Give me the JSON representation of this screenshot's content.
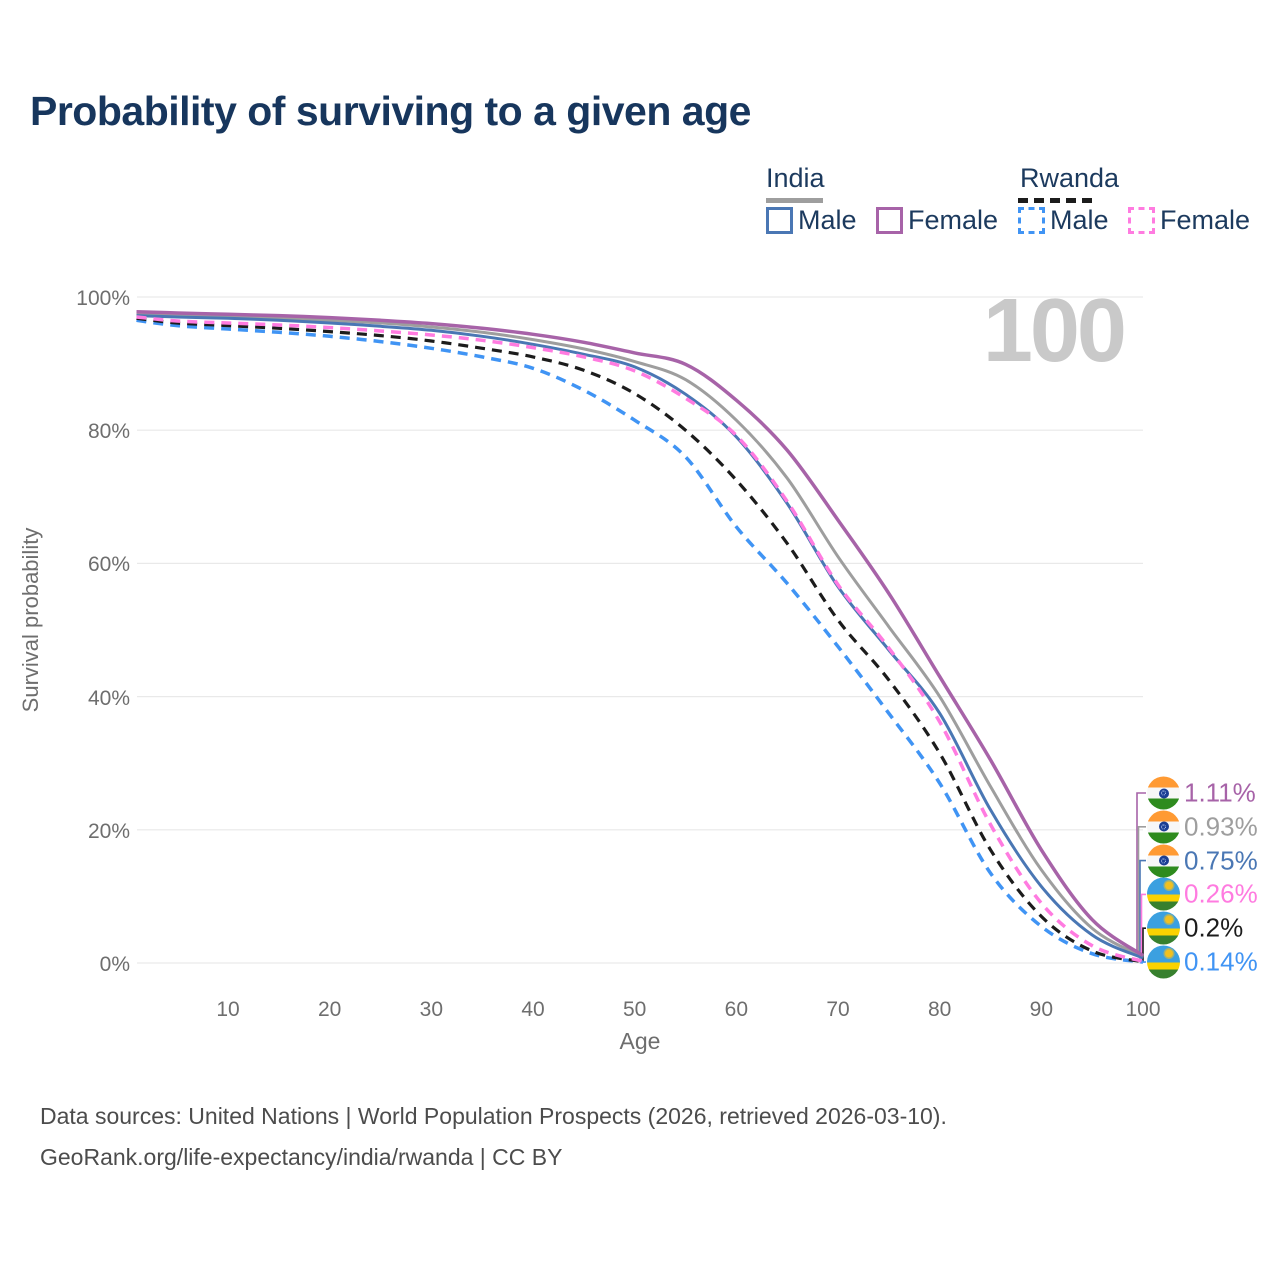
{
  "title": "Probability of surviving to a given age",
  "watermark_age": "100",
  "legend": {
    "groups": [
      {
        "title": "India",
        "line_style": "solid",
        "underline_color": "#9e9e9e",
        "items": [
          {
            "label": "Male",
            "color": "#4a77b4"
          },
          {
            "label": "Female",
            "color": "#a763a8"
          }
        ]
      },
      {
        "title": "Rwanda",
        "line_style": "dashed",
        "underline_color": "#1c1c1c",
        "items": [
          {
            "label": "Male",
            "color": "#4094f4"
          },
          {
            "label": "Female",
            "color": "#ff7be0"
          }
        ]
      }
    ]
  },
  "chart_data": {
    "type": "line",
    "title": "Probability of surviving to a given age",
    "xlabel": "Age",
    "ylabel": "Survival probability",
    "xlim": [
      1,
      100
    ],
    "ylim": [
      0,
      100
    ],
    "grid": "horizontal",
    "legend_position": "top-right",
    "x": [
      1,
      5,
      10,
      15,
      20,
      25,
      30,
      35,
      40,
      45,
      50,
      55,
      60,
      65,
      70,
      75,
      80,
      85,
      90,
      95,
      100
    ],
    "xticks": [
      10,
      20,
      30,
      40,
      50,
      60,
      70,
      80,
      90,
      100
    ],
    "yticks": [
      {
        "value": 0,
        "label": "0%"
      },
      {
        "value": 20,
        "label": "20%"
      },
      {
        "value": 40,
        "label": "40%"
      },
      {
        "value": 60,
        "label": "60%"
      },
      {
        "value": 80,
        "label": "80%"
      },
      {
        "value": 100,
        "label": "100%"
      }
    ],
    "series": [
      {
        "name": "India Both sexes",
        "country": "India",
        "sex": "both",
        "color": "#9e9e9e",
        "dash": "solid",
        "width": 3,
        "values": [
          97.5,
          97.3,
          97.1,
          96.8,
          96.5,
          96.1,
          95.5,
          94.7,
          93.6,
          92.2,
          90.3,
          87.6,
          81.5,
          72.8,
          61.0,
          50.5,
          40.0,
          26.5,
          14.0,
          5.2,
          0.93
        ]
      },
      {
        "name": "India Male",
        "country": "India",
        "sex": "male",
        "color": "#4a77b4",
        "dash": "solid",
        "width": 3,
        "values": [
          97.2,
          97.0,
          96.8,
          96.5,
          96.1,
          95.6,
          95.0,
          94.1,
          92.9,
          91.4,
          89.5,
          85.4,
          79.0,
          69.0,
          56.5,
          47.0,
          37.5,
          23.0,
          11.5,
          4.2,
          0.75
        ]
      },
      {
        "name": "India Female",
        "country": "India",
        "sex": "female",
        "color": "#a763a8",
        "dash": "solid",
        "width": 3.5,
        "values": [
          97.8,
          97.6,
          97.4,
          97.2,
          96.9,
          96.5,
          96.0,
          95.3,
          94.4,
          93.2,
          91.6,
          89.9,
          84.5,
          77.0,
          66.5,
          55.5,
          43.0,
          30.5,
          17.0,
          6.5,
          1.11
        ]
      },
      {
        "name": "Rwanda Male",
        "country": "Rwanda",
        "sex": "male",
        "color": "#4094f4",
        "dash": "dashed",
        "width": 3.5,
        "values": [
          96.5,
          95.7,
          95.2,
          94.7,
          94.1,
          93.3,
          92.3,
          91.0,
          89.3,
          86.0,
          81.5,
          76.0,
          65.5,
          57.0,
          47.5,
          37.5,
          27.0,
          13.5,
          5.5,
          1.4,
          0.14
        ]
      },
      {
        "name": "Rwanda Both sexes",
        "country": "Rwanda",
        "sex": "both",
        "color": "#1c1c1c",
        "dash": "dashed",
        "width": 3.2,
        "values": [
          96.8,
          96.1,
          95.7,
          95.3,
          94.8,
          94.2,
          93.4,
          92.3,
          91.0,
          89.0,
          85.5,
          80.0,
          72.5,
          63.0,
          51.5,
          42.5,
          31.5,
          17.0,
          7.0,
          1.8,
          0.2
        ]
      },
      {
        "name": "Rwanda Female",
        "country": "Rwanda",
        "sex": "female",
        "color": "#ff7be0",
        "dash": "dashed",
        "width": 3.5,
        "values": [
          97.0,
          96.4,
          96.1,
          95.8,
          95.4,
          94.9,
          94.3,
          93.5,
          92.4,
          91.0,
          88.9,
          84.8,
          79.2,
          69.3,
          56.8,
          47.3,
          36.2,
          20.8,
          9.0,
          2.6,
          0.26
        ]
      }
    ]
  },
  "end_labels": [
    {
      "icon": "india-flag-icon",
      "series": "India Female",
      "text": "1.11%",
      "color": "#a763a8"
    },
    {
      "icon": "india-flag-icon",
      "series": "India Both sexes",
      "text": "0.93%",
      "color": "#9e9e9e"
    },
    {
      "icon": "india-flag-icon",
      "series": "India Male",
      "text": "0.75%",
      "color": "#4a77b4"
    },
    {
      "icon": "rwanda-flag-icon",
      "series": "Rwanda Female",
      "text": "0.26%",
      "color": "#ff7be0"
    },
    {
      "icon": "rwanda-flag-icon",
      "series": "Rwanda Both sexes",
      "text": "0.2%",
      "color": "#1c1c1c"
    },
    {
      "icon": "rwanda-flag-icon",
      "series": "Rwanda Male",
      "text": "0.14%",
      "color": "#4094f4"
    }
  ],
  "footer": {
    "line1": "Data sources: United Nations | World Population Prospects (2026, retrieved 2026-03-10).",
    "line2": "GeoRank.org/life-expectancy/india/rwanda | CC BY"
  }
}
